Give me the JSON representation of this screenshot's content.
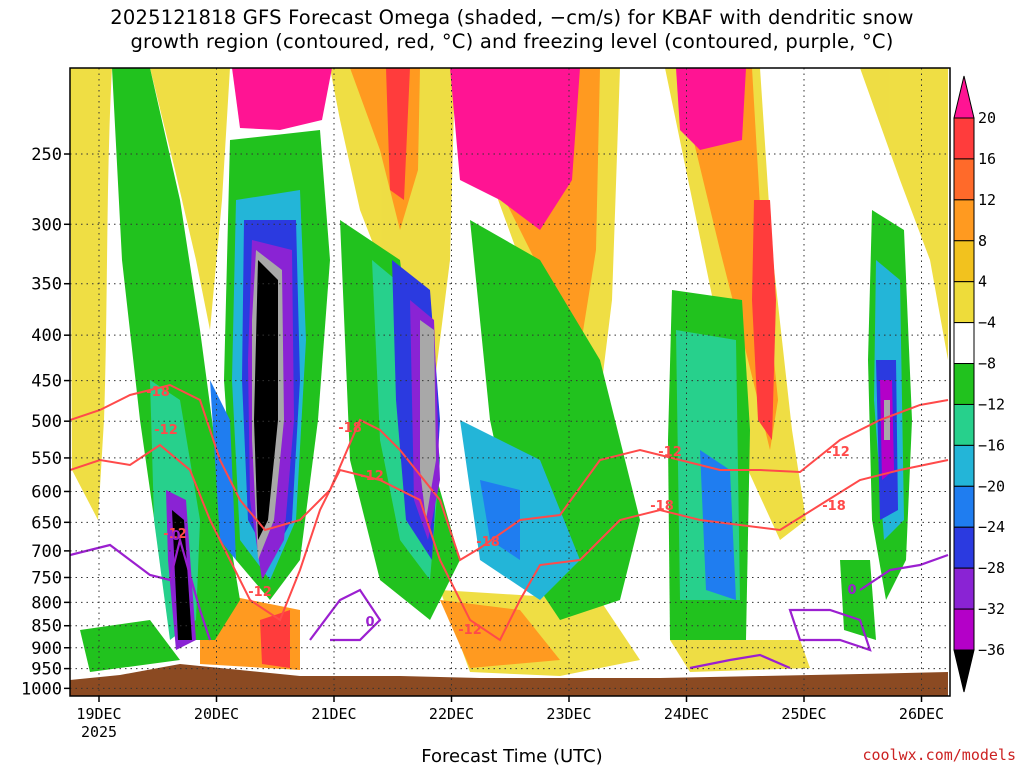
{
  "chart_data": {
    "type": "heatmap",
    "title_line1": "2025121818 GFS Forecast Omega (shaded, −cm/s) for KBAF with dendritic snow",
    "title_line2": "growth region (contoured, red, °C) and freezing level (contoured, purple, °C)",
    "xlabel": "Forecast Time (UTC)",
    "x_ticks": [
      "19DEC",
      "20DEC",
      "21DEC",
      "22DEC",
      "23DEC",
      "24DEC",
      "25DEC",
      "26DEC"
    ],
    "x_year": "2025",
    "y_ticks": [
      "250",
      "300",
      "350",
      "400",
      "450",
      "500",
      "550",
      "600",
      "650",
      "700",
      "750",
      "800",
      "850",
      "900",
      "950",
      "1000"
    ],
    "y_values": [
      250,
      300,
      350,
      400,
      450,
      500,
      550,
      600,
      650,
      700,
      750,
      800,
      850,
      900,
      950,
      1000
    ],
    "ylim": [
      200,
      1020
    ],
    "colorbar": {
      "labels": [
        "20",
        "16",
        "12",
        "8",
        "4",
        "−4",
        "−8",
        "−12",
        "−16",
        "−20",
        "−24",
        "−28",
        "−32",
        "−36"
      ],
      "colors": [
        "#ff1493",
        "#ff3c3c",
        "#ff6a2a",
        "#ff9a20",
        "#f2c21e",
        "#eedc3a",
        "#ffffff",
        "#21c21e",
        "#27d08c",
        "#23b5d8",
        "#1f7df0",
        "#2b3ae0",
        "#8a23d4",
        "#b400c8",
        "#a8a8a8",
        "#000000"
      ]
    },
    "contour_labels": {
      "dgz_red": [
        "-18",
        "-12",
        "-18",
        "-12",
        "-12",
        "-18",
        "-12",
        "-12",
        "-18",
        "-12",
        "-18",
        "-12"
      ],
      "freezing_purple": [
        "0",
        "0",
        "0"
      ]
    },
    "colors": {
      "dgz_contour": "#ff4a4a",
      "freezing_contour": "#9b1fd0",
      "ground": "#8b4a22"
    }
  },
  "watermark": "coolwx.com/models"
}
